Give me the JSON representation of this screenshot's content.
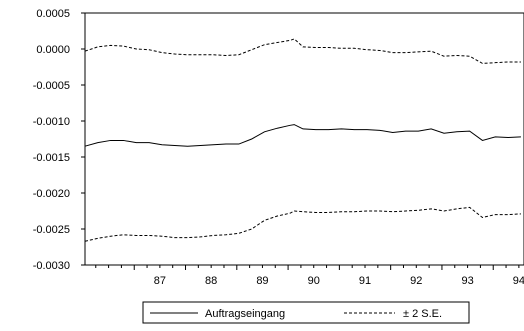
{
  "chart_data": {
    "type": "line",
    "title": "",
    "xlabel": "",
    "ylabel": "",
    "ylim": [
      -0.003,
      0.0005
    ],
    "xlim": [
      86.04,
      94.6
    ],
    "yticks": [
      0.0005,
      0.0,
      -0.0005,
      -0.001,
      -0.0015,
      -0.002,
      -0.0025,
      -0.003
    ],
    "ytick_labels": [
      "0.0005",
      "0.0000",
      "-0.0005",
      "-0.0010",
      "-0.0015",
      "-0.0020",
      "-0.0025",
      "-0.0030"
    ],
    "xticks": [
      87,
      88,
      89,
      90,
      91,
      92,
      93,
      94
    ],
    "xtick_labels": [
      "87",
      "88",
      "89",
      "90",
      "91",
      "92",
      "93",
      "94"
    ],
    "grid": false,
    "legend": "bottom",
    "series": [
      {
        "name": "Auftragseingang",
        "style": "solid",
        "color": "#000000",
        "x": [
          86.04,
          86.29,
          86.54,
          86.79,
          87.04,
          87.29,
          87.54,
          87.79,
          88.04,
          88.29,
          88.54,
          88.79,
          89.04,
          89.29,
          89.54,
          89.79,
          90.04,
          90.12,
          90.29,
          90.54,
          90.79,
          91.04,
          91.29,
          91.54,
          91.79,
          92.04,
          92.29,
          92.54,
          92.79,
          93.04,
          93.29,
          93.54,
          93.79,
          94.04,
          94.29,
          94.54
        ],
        "y": [
          -0.00135,
          -0.0013,
          -0.00127,
          -0.00127,
          -0.0013,
          -0.0013,
          -0.00133,
          -0.00134,
          -0.00135,
          -0.00134,
          -0.00133,
          -0.00132,
          -0.00132,
          -0.00125,
          -0.00115,
          -0.0011,
          -0.00106,
          -0.00105,
          -0.00111,
          -0.00112,
          -0.00112,
          -0.00111,
          -0.00112,
          -0.00112,
          -0.00113,
          -0.00116,
          -0.00114,
          -0.00114,
          -0.00111,
          -0.00117,
          -0.00115,
          -0.00114,
          -0.00127,
          -0.00122,
          -0.00123,
          -0.00122
        ]
      },
      {
        "name": "± 2 S.E.",
        "style": "dashed",
        "color": "#000000",
        "x": [
          86.04,
          86.29,
          86.54,
          86.79,
          87.04,
          87.29,
          87.54,
          87.79,
          88.04,
          88.29,
          88.54,
          88.79,
          89.04,
          89.29,
          89.54,
          89.79,
          90.04,
          90.12,
          90.29,
          90.54,
          90.79,
          91.04,
          91.29,
          91.54,
          91.79,
          92.04,
          92.29,
          92.54,
          92.79,
          93.04,
          93.29,
          93.54,
          93.79,
          94.04,
          94.29,
          94.54
        ],
        "y": [
          -3e-05,
          3e-05,
          5e-05,
          4e-05,
          0.0,
          -1e-05,
          -5e-05,
          -7e-05,
          -8e-05,
          -8e-05,
          -8e-05,
          -9e-05,
          -8e-05,
          -1e-05,
          6e-05,
          9e-05,
          0.00012,
          0.00014,
          3e-05,
          2e-05,
          2e-05,
          1e-05,
          1e-05,
          -1e-05,
          -2e-05,
          -5e-05,
          -5e-05,
          -4e-05,
          -3e-05,
          -0.0001,
          -9e-05,
          -0.0001,
          -0.0002,
          -0.00019,
          -0.00018,
          -0.00018
        ]
      },
      {
        "name": "± 2 S.E.",
        "style": "dashed",
        "color": "#000000",
        "x": [
          86.04,
          86.29,
          86.54,
          86.79,
          87.04,
          87.29,
          87.54,
          87.79,
          88.04,
          88.29,
          88.54,
          88.79,
          89.04,
          89.29,
          89.54,
          89.79,
          90.04,
          90.12,
          90.29,
          90.54,
          90.79,
          91.04,
          91.29,
          91.54,
          91.79,
          92.04,
          92.29,
          92.54,
          92.79,
          93.04,
          93.29,
          93.54,
          93.79,
          94.04,
          94.29,
          94.54
        ],
        "y": [
          -0.00267,
          -0.00263,
          -0.0026,
          -0.00258,
          -0.00259,
          -0.00259,
          -0.0026,
          -0.00262,
          -0.00262,
          -0.00261,
          -0.00259,
          -0.00258,
          -0.00256,
          -0.0025,
          -0.00238,
          -0.00232,
          -0.00228,
          -0.00225,
          -0.00226,
          -0.00227,
          -0.00227,
          -0.00226,
          -0.00226,
          -0.00225,
          -0.00225,
          -0.00226,
          -0.00225,
          -0.00224,
          -0.00222,
          -0.00225,
          -0.00222,
          -0.0022,
          -0.00234,
          -0.0023,
          -0.0023,
          -0.00229
        ]
      }
    ],
    "legend_entries": [
      {
        "label": "Auftragseingang",
        "style": "solid"
      },
      {
        "label": "± 2 S.E.",
        "style": "dashed"
      }
    ]
  }
}
